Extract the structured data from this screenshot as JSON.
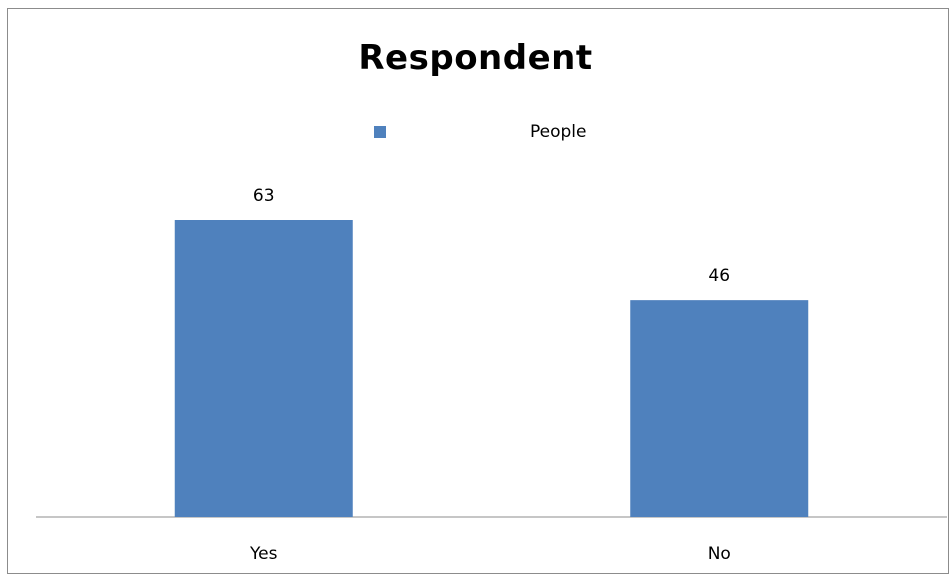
{
  "chart_data": {
    "type": "bar",
    "title": "Respondent",
    "categories": [
      "Yes",
      "No"
    ],
    "series": [
      {
        "name": "People",
        "values": [
          63,
          46
        ],
        "color": "#4f81bd"
      }
    ],
    "data_labels": [
      "63",
      "46"
    ],
    "xlabel": "",
    "ylabel": "",
    "ylim": [
      0,
      70
    ],
    "grid": false,
    "legend_position": "top"
  }
}
